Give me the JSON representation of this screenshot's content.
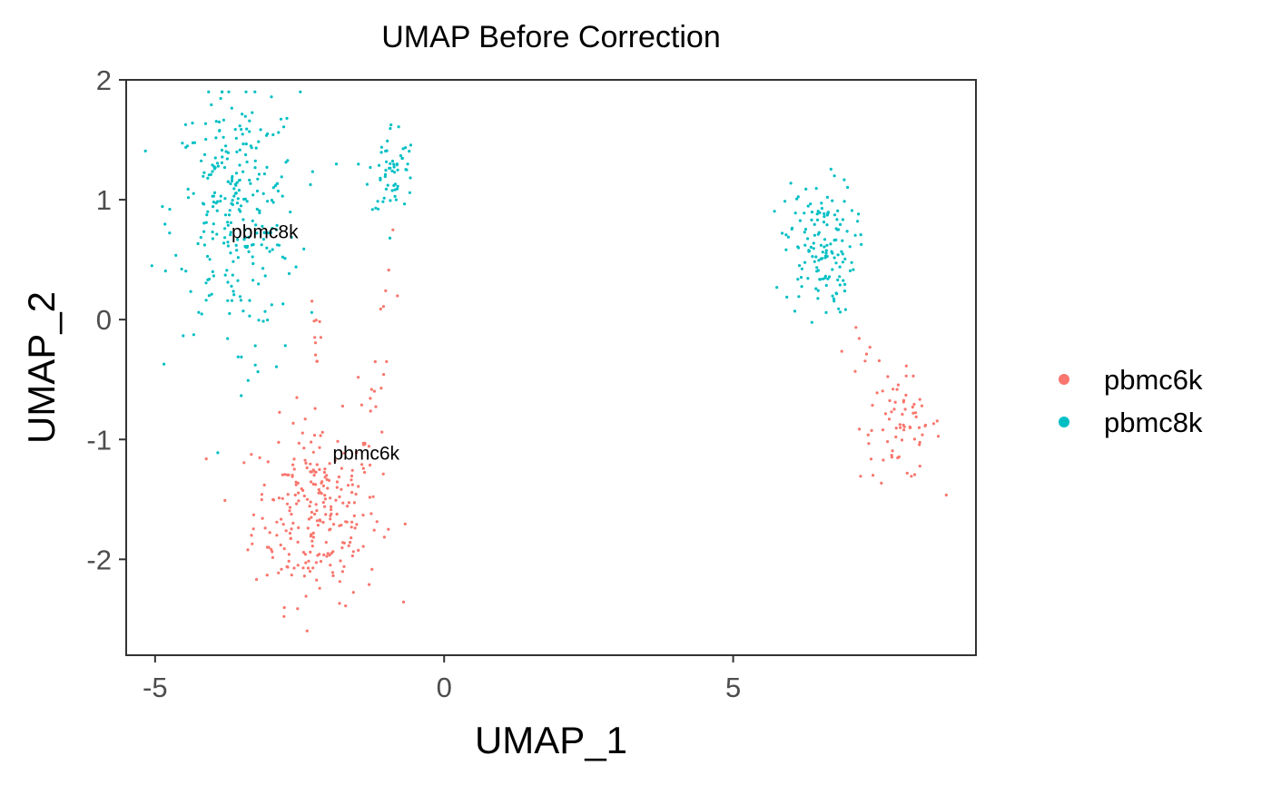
{
  "chart_data": {
    "type": "scatter",
    "title": "UMAP Before Correction",
    "xlabel": "UMAP_1",
    "ylabel": "UMAP_2",
    "xlim": [
      -5.5,
      9.2
    ],
    "ylim": [
      -2.8,
      2.0
    ],
    "xticks": [
      -5,
      0,
      5
    ],
    "yticks": [
      -2,
      -1,
      0,
      1,
      2
    ],
    "grid": false,
    "legend_position": "right",
    "series": [
      {
        "name": "pbmc6k",
        "color": "#F8766D",
        "clusters": [
          {
            "center": [
              -2.2,
              -1.6
            ],
            "spread": [
              0.55,
              0.38
            ],
            "n": 260
          },
          {
            "center": [
              -1.3,
              -0.7
            ],
            "spread": [
              0.12,
              0.15
            ],
            "n": 10
          },
          {
            "center": [
              -2.2,
              -0.1
            ],
            "spread": [
              0.05,
              0.2
            ],
            "n": 10
          },
          {
            "center": [
              -1.0,
              0.2
            ],
            "spread": [
              0.12,
              0.25
            ],
            "n": 8
          },
          {
            "center": [
              7.9,
              -0.9
            ],
            "spread": [
              0.35,
              0.22
            ],
            "n": 70
          },
          {
            "center": [
              7.3,
              -0.25
            ],
            "spread": [
              0.2,
              0.18
            ],
            "n": 8
          }
        ]
      },
      {
        "name": "pbmc8k",
        "color": "#00BFC4",
        "clusters": [
          {
            "center": [
              -3.6,
              0.9
            ],
            "spread": [
              0.55,
              0.5
            ],
            "n": 280
          },
          {
            "center": [
              -0.9,
              1.25
            ],
            "spread": [
              0.2,
              0.2
            ],
            "n": 60
          },
          {
            "center": [
              6.5,
              0.6
            ],
            "spread": [
              0.3,
              0.28
            ],
            "n": 150
          },
          {
            "center": [
              -3.3,
              -0.35
            ],
            "spread": [
              0.4,
              0.2
            ],
            "n": 8
          }
        ]
      }
    ],
    "cluster_labels": [
      {
        "text": "pbmc8k",
        "x": -3.1,
        "y": 0.68
      },
      {
        "text": "pbmc6k",
        "x": -1.35,
        "y": -1.17
      }
    ],
    "legend": [
      {
        "label": "pbmc6k",
        "color": "#F8766D"
      },
      {
        "label": "pbmc8k",
        "color": "#00BFC4"
      }
    ]
  }
}
